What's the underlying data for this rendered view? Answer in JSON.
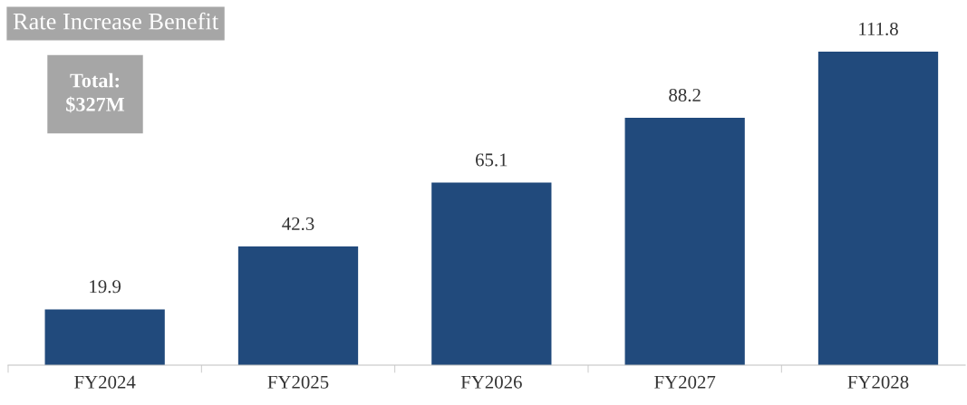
{
  "chart_data": {
    "type": "bar",
    "title": "Rate Increase Benefit",
    "categories": [
      "FY2024",
      "FY2025",
      "FY2026",
      "FY2027",
      "FY2028"
    ],
    "values": [
      19.9,
      42.3,
      65.1,
      88.2,
      111.8
    ],
    "color": "#214a7c",
    "data_labels": true,
    "grid": false,
    "legend": false,
    "tick_labels": "x",
    "annotations": [
      "Total:\n$327M"
    ]
  }
}
